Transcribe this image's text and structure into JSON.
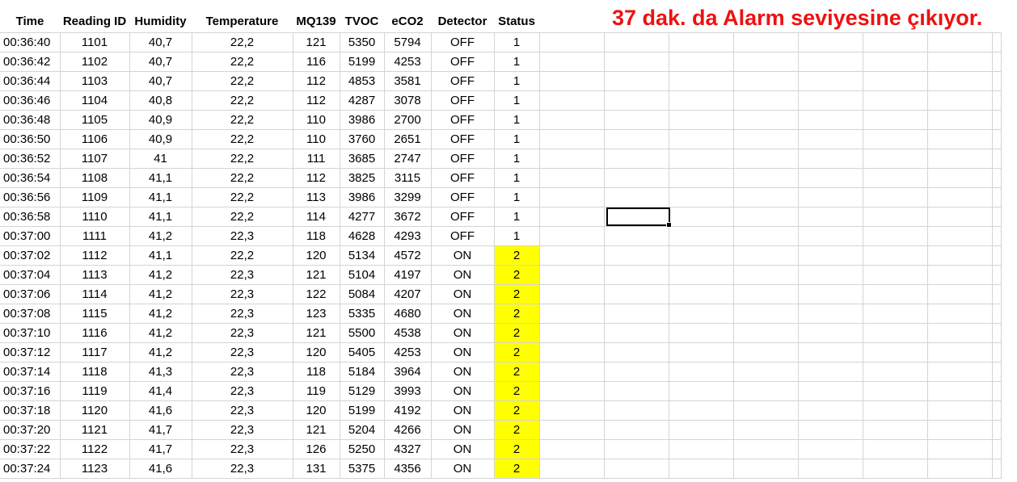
{
  "banner": "37 dak. da Alarm seviyesine çıkıyor.",
  "colors": {
    "banner": "#ee1111",
    "alarm_highlight": "#ffff00",
    "gridline": "#d4d4d4"
  },
  "headers": [
    "Time",
    "Reading ID",
    "Humidity",
    "Temperature",
    "MQ139",
    "TVOC",
    "eCO2",
    "Detector",
    "Status"
  ],
  "rows": [
    [
      "00:36:40",
      "1101",
      "40,7",
      "22,2",
      "121",
      "5350",
      "5794",
      "OFF",
      "1"
    ],
    [
      "00:36:42",
      "1102",
      "40,7",
      "22,2",
      "116",
      "5199",
      "4253",
      "OFF",
      "1"
    ],
    [
      "00:36:44",
      "1103",
      "40,7",
      "22,2",
      "112",
      "4853",
      "3581",
      "OFF",
      "1"
    ],
    [
      "00:36:46",
      "1104",
      "40,8",
      "22,2",
      "112",
      "4287",
      "3078",
      "OFF",
      "1"
    ],
    [
      "00:36:48",
      "1105",
      "40,9",
      "22,2",
      "110",
      "3986",
      "2700",
      "OFF",
      "1"
    ],
    [
      "00:36:50",
      "1106",
      "40,9",
      "22,2",
      "110",
      "3760",
      "2651",
      "OFF",
      "1"
    ],
    [
      "00:36:52",
      "1107",
      "41",
      "22,2",
      "111",
      "3685",
      "2747",
      "OFF",
      "1"
    ],
    [
      "00:36:54",
      "1108",
      "41,1",
      "22,2",
      "112",
      "3825",
      "3115",
      "OFF",
      "1"
    ],
    [
      "00:36:56",
      "1109",
      "41,1",
      "22,2",
      "113",
      "3986",
      "3299",
      "OFF",
      "1"
    ],
    [
      "00:36:58",
      "1110",
      "41,1",
      "22,2",
      "114",
      "4277",
      "3672",
      "OFF",
      "1"
    ],
    [
      "00:37:00",
      "1111",
      "41,2",
      "22,3",
      "118",
      "4628",
      "4293",
      "OFF",
      "1"
    ],
    [
      "00:37:02",
      "1112",
      "41,1",
      "22,2",
      "120",
      "5134",
      "4572",
      "ON",
      "2"
    ],
    [
      "00:37:04",
      "1113",
      "41,2",
      "22,3",
      "121",
      "5104",
      "4197",
      "ON",
      "2"
    ],
    [
      "00:37:06",
      "1114",
      "41,2",
      "22,3",
      "122",
      "5084",
      "4207",
      "ON",
      "2"
    ],
    [
      "00:37:08",
      "1115",
      "41,2",
      "22,3",
      "123",
      "5335",
      "4680",
      "ON",
      "2"
    ],
    [
      "00:37:10",
      "1116",
      "41,2",
      "22,3",
      "121",
      "5500",
      "4538",
      "ON",
      "2"
    ],
    [
      "00:37:12",
      "1117",
      "41,2",
      "22,3",
      "120",
      "5405",
      "4253",
      "ON",
      "2"
    ],
    [
      "00:37:14",
      "1118",
      "41,3",
      "22,3",
      "118",
      "5184",
      "3964",
      "ON",
      "2"
    ],
    [
      "00:37:16",
      "1119",
      "41,4",
      "22,3",
      "119",
      "5129",
      "3993",
      "ON",
      "2"
    ],
    [
      "00:37:18",
      "1120",
      "41,6",
      "22,3",
      "120",
      "5199",
      "4192",
      "ON",
      "2"
    ],
    [
      "00:37:20",
      "1121",
      "41,7",
      "22,3",
      "121",
      "5204",
      "4266",
      "ON",
      "2"
    ],
    [
      "00:37:22",
      "1122",
      "41,7",
      "22,3",
      "126",
      "5250",
      "4327",
      "ON",
      "2"
    ],
    [
      "00:37:24",
      "1123",
      "41,6",
      "22,3",
      "131",
      "5375",
      "4356",
      "ON",
      "2"
    ]
  ]
}
